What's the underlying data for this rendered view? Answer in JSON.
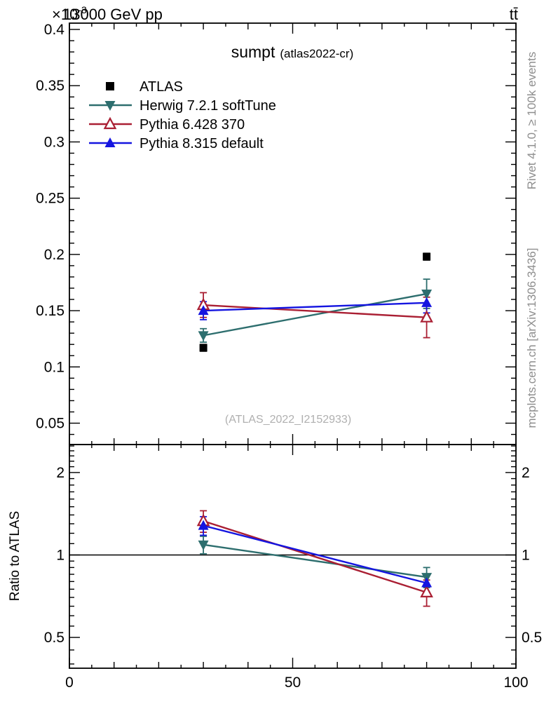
{
  "header": {
    "scale_base": "×10",
    "scale_exp": "-3",
    "energy": "13000 GeV pp",
    "process": "tt̄"
  },
  "title": {
    "main": "sumpt",
    "sub": "(atlas2022-cr)"
  },
  "watermark": "(ATLAS_2022_I2152933)",
  "side_labels": {
    "top": "Rivet 4.1.0, ≥ 100k events",
    "bottom": "mcplots.cern.ch [arXiv:1306.3436]"
  },
  "colors": {
    "atlas": "#000000",
    "herwig": "#2d6e6e",
    "pythia6": "#aa1f33",
    "pythia8": "#1515e0",
    "gray_text": "#8e8e8e",
    "watermark": "#b0b0b0",
    "frame": "#000000"
  },
  "chart_data": {
    "type": "line",
    "title": "sumpt (atlas2022-cr)",
    "x": [
      30,
      80
    ],
    "xlim": [
      0,
      100
    ],
    "xticks": [
      0,
      50,
      100
    ],
    "x_minor_step": 5,
    "main_panel": {
      "ylim": [
        0.031,
        0.4056
      ],
      "yticks": [
        0.05,
        0.1,
        0.15,
        0.2,
        0.25,
        0.3,
        0.35,
        0.4
      ],
      "y_minor_step": 0.01,
      "axis_scale_factor": "1e-3"
    },
    "series": [
      {
        "name": "ATLAS",
        "marker": "square",
        "fill": "filled",
        "color": "#000000",
        "line": false,
        "values": [
          0.117,
          0.198
        ],
        "errors": [
          0.003,
          0.003
        ]
      },
      {
        "name": "Herwig 7.2.1 softTune",
        "marker": "triangle-down",
        "fill": "filled",
        "color": "#2d6e6e",
        "line": true,
        "values": [
          0.128,
          0.165
        ],
        "errors": [
          0.006,
          0.013
        ]
      },
      {
        "name": "Pythia 6.428 370",
        "marker": "triangle-up",
        "fill": "open",
        "color": "#aa1f33",
        "line": true,
        "values": [
          0.155,
          0.144
        ],
        "errors": [
          0.011,
          0.018
        ]
      },
      {
        "name": "Pythia 8.315 default",
        "marker": "triangle-up",
        "fill": "filled",
        "color": "#1515e0",
        "line": true,
        "values": [
          0.15,
          0.157
        ],
        "errors": [
          0.008,
          0.009
        ]
      }
    ],
    "ratio_panel": {
      "ylabel": "Ratio to ATLAS",
      "scale": "log",
      "ylim": [
        0.386,
        2.53
      ],
      "yticks": [
        0.5,
        1,
        2
      ],
      "reference_line": 1,
      "series": [
        {
          "name": "Herwig 7.2.1 softTune",
          "color": "#2d6e6e",
          "marker": "triangle-down",
          "fill": "filled",
          "values": [
            1.09,
            0.83
          ],
          "errors": [
            0.08,
            0.07
          ]
        },
        {
          "name": "Pythia 6.428 370",
          "color": "#aa1f33",
          "marker": "triangle-up",
          "fill": "open",
          "values": [
            1.33,
            0.73
          ],
          "errors": [
            0.12,
            0.08
          ]
        },
        {
          "name": "Pythia 8.315 default",
          "color": "#1515e0",
          "marker": "triangle-up",
          "fill": "filled",
          "values": [
            1.28,
            0.79
          ],
          "errors": [
            0.1,
            0.06
          ]
        }
      ]
    },
    "legend_position": "top-left",
    "grid": false
  }
}
